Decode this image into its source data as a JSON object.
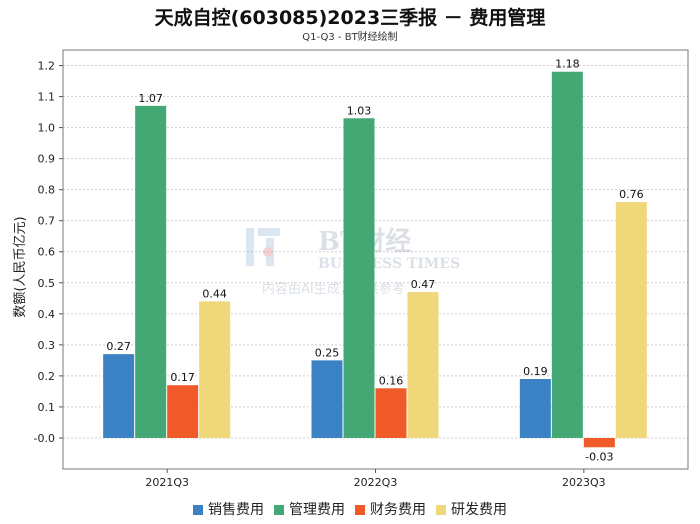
{
  "chart_data": {
    "type": "bar",
    "title": "天成自控(603085)2023三季报 － 费用管理",
    "subtitle": "Q1-Q3 - BT财经绘制",
    "ylabel": "数额(人民币亿元)",
    "xlabel": "",
    "categories": [
      "2021Q3",
      "2022Q3",
      "2023Q3"
    ],
    "ylim": [
      -0.1,
      1.25
    ],
    "yticks": [
      "-0.0",
      "0.1",
      "0.2",
      "0.3",
      "0.4",
      "0.5",
      "0.6",
      "0.7",
      "0.8",
      "0.9",
      "1.0",
      "1.1",
      "1.2"
    ],
    "grid": true,
    "legend_position": "bottom",
    "series": [
      {
        "name": "销售费用",
        "color": "#3a82c4",
        "values": [
          0.27,
          0.25,
          0.19
        ],
        "labels": [
          "0.27",
          "0.25",
          "0.19"
        ]
      },
      {
        "name": "管理费用",
        "color": "#43a873",
        "values": [
          1.07,
          1.03,
          1.18
        ],
        "labels": [
          "1.07",
          "1.03",
          "1.18"
        ]
      },
      {
        "name": "财务费用",
        "color": "#f05a28",
        "values": [
          0.17,
          0.16,
          -0.03
        ],
        "labels": [
          "0.17",
          "0.16",
          "-0.03"
        ]
      },
      {
        "name": "研发费用",
        "color": "#efd77a",
        "values": [
          0.44,
          0.47,
          0.76
        ],
        "labels": [
          "0.44",
          "0.47",
          "0.76"
        ]
      }
    ]
  },
  "watermark": {
    "brand": "BT财经",
    "brand_en": "BUSINESS TIMES",
    "notice": "内容由AI生成，仅供参考"
  }
}
